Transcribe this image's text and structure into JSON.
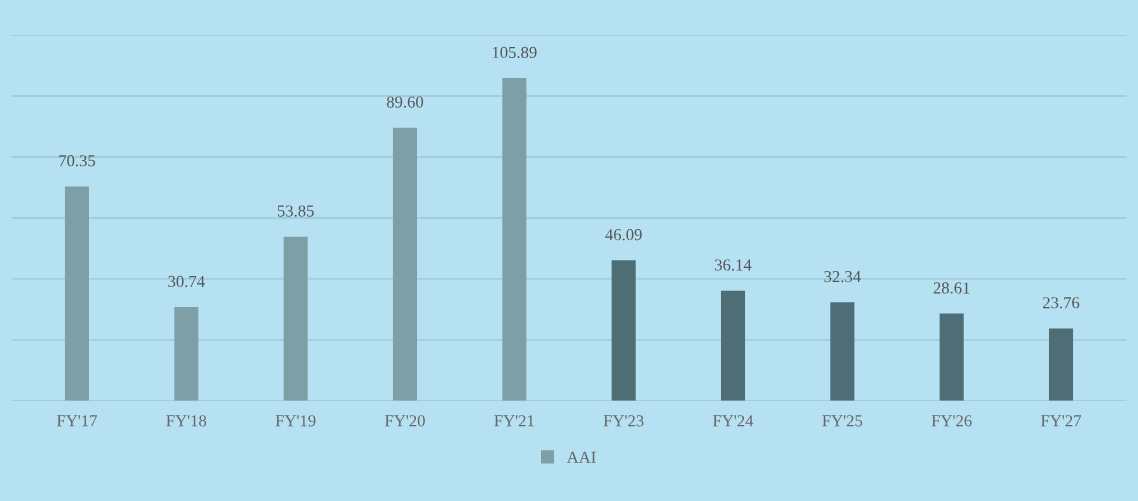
{
  "chart_data": {
    "type": "bar",
    "categories": [
      "FY'17",
      "FY'18",
      "FY'19",
      "FY'20",
      "FY'21",
      "FY'23",
      "FY'24",
      "FY'25",
      "FY'26",
      "FY'27"
    ],
    "series": [
      {
        "name": "AAI",
        "color": "#7f9fa7",
        "values": [
          70.35,
          30.74,
          53.85,
          89.6,
          105.89,
          null,
          null,
          null,
          null,
          null
        ],
        "value_labels": [
          "70.35",
          "30.74",
          "53.85",
          "89.60",
          "105.89",
          null,
          null,
          null,
          null,
          null
        ]
      },
      {
        "color": "#4f6d74",
        "values": [
          null,
          null,
          null,
          null,
          null,
          46.09,
          36.14,
          32.34,
          28.61,
          23.76
        ],
        "value_labels": [
          null,
          null,
          null,
          null,
          null,
          "46.09",
          "36.14",
          "32.34",
          "28.61",
          "23.76"
        ]
      }
    ],
    "ylim": [
      0,
      120
    ],
    "yticks": [
      {
        "value": 0,
        "label": null
      },
      {
        "value": 20,
        "label": null
      },
      {
        "value": 40,
        "label": null
      },
      {
        "value": 60,
        "label": null
      },
      {
        "value": 80,
        "label": null
      },
      {
        "value": 100,
        "label": null
      },
      {
        "value": 120,
        "label": null
      }
    ],
    "tick_labels": "x",
    "grid": "y",
    "legend": "bottom"
  }
}
